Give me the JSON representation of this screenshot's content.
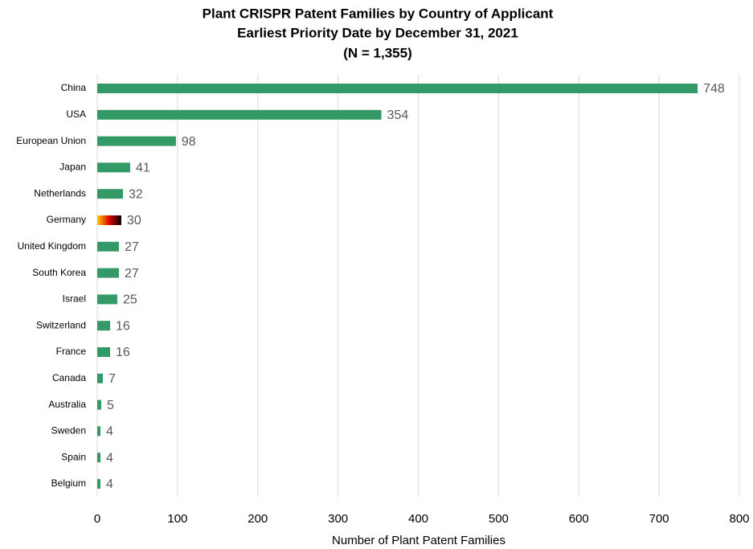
{
  "chart_data": {
    "type": "bar",
    "orientation": "horizontal",
    "title": [
      "Plant CRISPR Patent Families by Country of Applicant",
      "Earliest Priority Date by December 31, 2021",
      "(N = 1,355)"
    ],
    "categories": [
      "China",
      "USA",
      "European Union",
      "Japan",
      "Netherlands",
      "Germany",
      "United Kingdom",
      "South Korea",
      "Israel",
      "Switzerland",
      "France",
      "Canada",
      "Australia",
      "Sweden",
      "Spain",
      "Belgium"
    ],
    "values": [
      748,
      354,
      98,
      41,
      32,
      30,
      27,
      27,
      25,
      16,
      16,
      7,
      5,
      4,
      4,
      4
    ],
    "color": "#339966",
    "gradient_colors": {
      "Germany": [
        "#ffcc00",
        "#dd0000",
        "#000000"
      ]
    },
    "xlim": [
      0,
      800
    ],
    "xticks": [
      0,
      100,
      200,
      300,
      400,
      500,
      600,
      700,
      800
    ],
    "xlabel": "Number of Plant Patent Families",
    "grid": true
  }
}
